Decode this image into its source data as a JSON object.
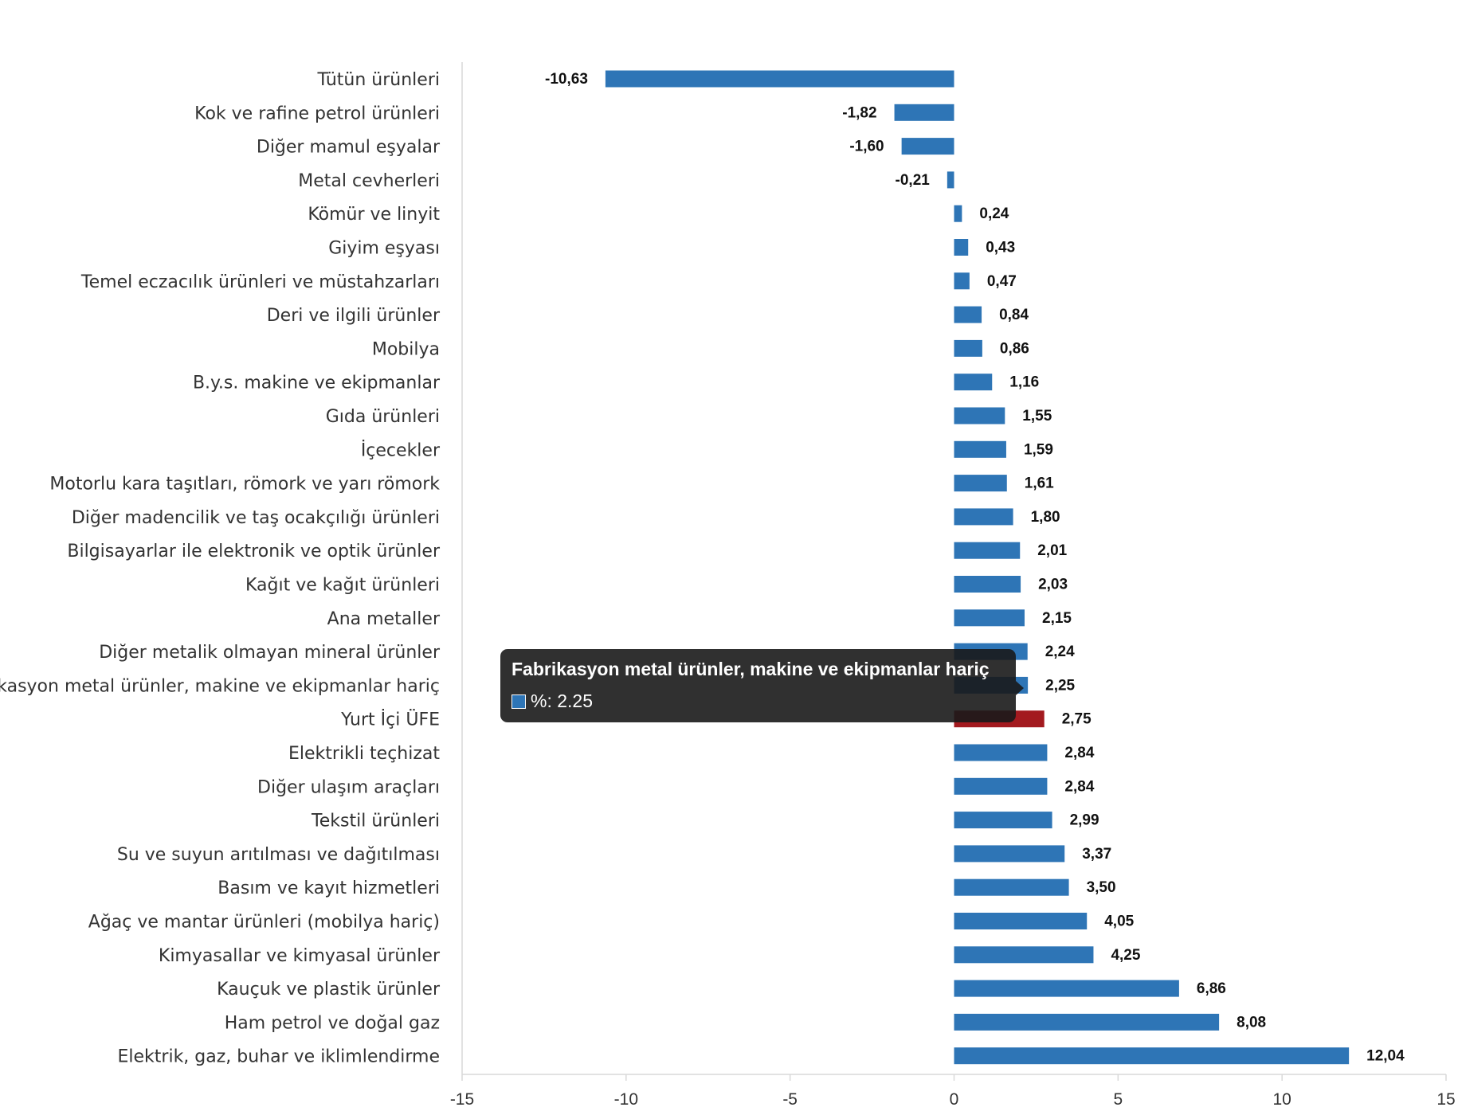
{
  "chart_data": {
    "type": "bar",
    "orientation": "horizontal",
    "categories": [
      "Tütün ürünleri",
      "Kok ve rafine petrol ürünleri",
      "Diğer mamul eşyalar",
      "Metal cevherleri",
      "Kömür ve linyit",
      "Giyim eşyası",
      "Temel eczacılık ürünleri ve müstahzarları",
      "Deri ve ilgili ürünler",
      "Mobilya",
      "B.y.s. makine ve ekipmanlar",
      "Gıda ürünleri",
      "İçecekler",
      "Motorlu kara taşıtları, römork ve yarı römork",
      "Diğer madencilik ve taş ocakçılığı ürünleri",
      "Bilgisayarlar ile elektronik ve optik ürünler",
      "Kağıt ve kağıt ürünleri",
      "Ana metaller",
      "Diğer metalik olmayan mineral ürünler",
      "Fabrikasyon metal ürünler, makine ve ekipmanlar hariç",
      "Yurt İçi ÜFE",
      "Elektrikli teçhizat",
      "Diğer ulaşım araçları",
      "Tekstil ürünleri",
      "Su ve suyun arıtılması ve dağıtılması",
      "Basım ve kayıt hizmetleri",
      "Ağaç ve mantar ürünleri (mobilya hariç)",
      "Kimyasallar ve kimyasal ürünler",
      "Kauçuk ve plastik ürünler",
      "Ham petrol ve doğal gaz",
      "Elektrik, gaz, buhar ve iklimlendirme"
    ],
    "values": [
      -10.63,
      -1.82,
      -1.6,
      -0.21,
      0.24,
      0.43,
      0.47,
      0.84,
      0.86,
      1.16,
      1.55,
      1.59,
      1.61,
      1.8,
      2.01,
      2.03,
      2.15,
      2.24,
      2.25,
      2.75,
      2.84,
      2.84,
      2.99,
      3.37,
      3.5,
      4.05,
      4.25,
      6.86,
      8.08,
      12.04
    ],
    "value_labels": [
      "-10,63",
      "-1,82",
      "-1,60",
      "-0,21",
      "0,24",
      "0,43",
      "0,47",
      "0,84",
      "0,86",
      "1,16",
      "1,55",
      "1,59",
      "1,61",
      "1,80",
      "2,01",
      "2,03",
      "2,15",
      "2,24",
      "2,25",
      "2,75",
      "2,84",
      "2,84",
      "2,99",
      "3,37",
      "3,50",
      "4,05",
      "4,25",
      "6,86",
      "8,08",
      "12,04"
    ],
    "highlight_category": "Yurt İçi ÜFE",
    "xlim": [
      -15,
      15
    ],
    "x_ticks": [
      -15,
      -10,
      -5,
      0,
      5,
      10,
      15
    ],
    "x_tick_labels": [
      "-15",
      "-10",
      "-5",
      "0",
      "5",
      "10",
      "15"
    ],
    "grid": false,
    "colors": {
      "bar": "#2e75b6",
      "highlight": "#a31a1f",
      "axis": "#d9d9d9"
    }
  },
  "tooltip": {
    "title": "Fabrikasyon metal ürünler, makine ve ekipmanlar hariç",
    "value_text": "%: 2.25",
    "swatch_color": "#2e75b6"
  }
}
